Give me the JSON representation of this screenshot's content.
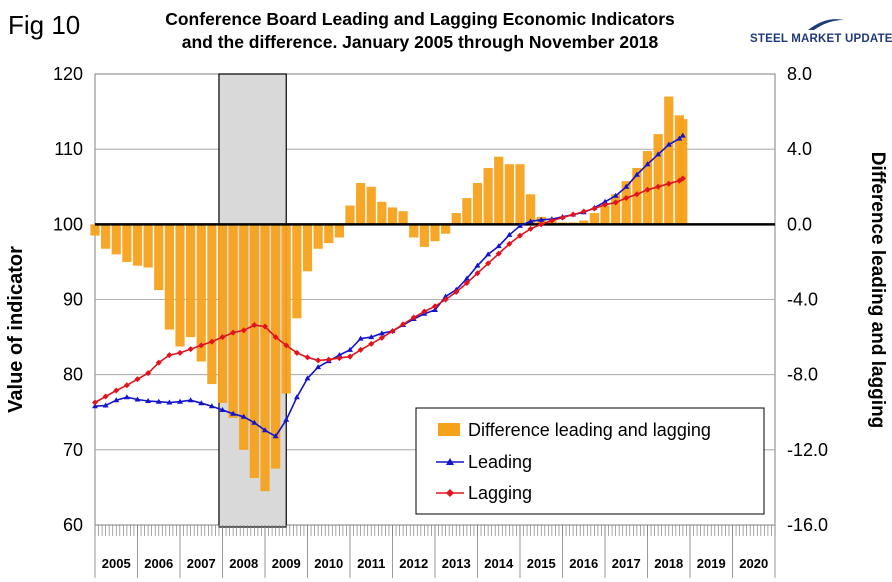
{
  "figure": {
    "label": "Fig 10",
    "title_line1": "Conference Board Leading and Lagging Economic Indicators",
    "title_line2": "and the difference. January 2005 through November 2018",
    "brand": {
      "name": "STEEL MARKET UPDATE",
      "color": "#1f3a7a"
    }
  },
  "chart_data": {
    "type": "line",
    "ylabel": "Value of indicator",
    "y2label": "Difference leading and lagging",
    "ylim": [
      60,
      120
    ],
    "y2lim": [
      -16,
      8
    ],
    "yticks": [
      "120",
      "110",
      "100",
      "90",
      "80",
      "70",
      "60"
    ],
    "y2ticks": [
      "8.0",
      "4.0",
      "0.0",
      "-4.0",
      "-8.0",
      "-12.0",
      "-16.0"
    ],
    "xlim": [
      2005,
      2021
    ],
    "x_labels": [
      "2005",
      "2006",
      "2007",
      "2008",
      "2009",
      "2010",
      "2011",
      "2012",
      "2013",
      "2014",
      "2015",
      "2016",
      "2017",
      "2018",
      "2019",
      "2020"
    ],
    "shaded_period": {
      "start": 2007.917,
      "end": 2009.5
    },
    "colors": {
      "difference": "#f5a21b",
      "leading": "#1414cc",
      "lagging": "#e0141e",
      "shade": "#d9d9d9"
    },
    "legend_position": "bottom-right",
    "series": [
      {
        "name": "Difference leading and lagging",
        "type": "bar",
        "axis": "right",
        "x": [
          2005.0,
          2005.25,
          2005.5,
          2005.75,
          2006.0,
          2006.25,
          2006.5,
          2006.75,
          2007.0,
          2007.25,
          2007.5,
          2007.75,
          2008.0,
          2008.25,
          2008.5,
          2008.75,
          2009.0,
          2009.25,
          2009.5,
          2009.75,
          2010.0,
          2010.25,
          2010.5,
          2010.75,
          2011.0,
          2011.25,
          2011.5,
          2011.75,
          2012.0,
          2012.25,
          2012.5,
          2012.75,
          2013.0,
          2013.25,
          2013.5,
          2013.75,
          2014.0,
          2014.25,
          2014.5,
          2014.75,
          2015.0,
          2015.25,
          2015.5,
          2015.75,
          2016.0,
          2016.25,
          2016.5,
          2016.75,
          2017.0,
          2017.25,
          2017.5,
          2017.75,
          2018.0,
          2018.25,
          2018.5,
          2018.75,
          2018.83
        ],
        "values": [
          -0.6,
          -1.3,
          -1.6,
          -2.0,
          -2.2,
          -2.3,
          -3.5,
          -5.6,
          -6.5,
          -6.0,
          -7.3,
          -8.5,
          -9.5,
          -10.3,
          -12.0,
          -13.5,
          -14.2,
          -13.0,
          -9.0,
          -5.0,
          -2.5,
          -1.3,
          -1.0,
          -0.7,
          1.0,
          2.2,
          2.0,
          1.2,
          0.9,
          0.7,
          -0.7,
          -1.2,
          -0.9,
          -0.5,
          0.6,
          1.4,
          2.2,
          3.0,
          3.6,
          3.2,
          3.2,
          1.6,
          0.4,
          0.2,
          0.1,
          0.1,
          0.2,
          0.6,
          1.0,
          1.6,
          2.3,
          3.0,
          3.9,
          4.8,
          6.8,
          5.8,
          5.6
        ]
      },
      {
        "name": "Leading",
        "type": "line",
        "axis": "left",
        "x": [
          2005.0,
          2005.25,
          2005.5,
          2005.75,
          2006.0,
          2006.25,
          2006.5,
          2006.75,
          2007.0,
          2007.25,
          2007.5,
          2007.75,
          2008.0,
          2008.25,
          2008.5,
          2008.75,
          2009.0,
          2009.25,
          2009.5,
          2009.75,
          2010.0,
          2010.25,
          2010.5,
          2010.75,
          2011.0,
          2011.25,
          2011.5,
          2011.75,
          2012.0,
          2012.25,
          2012.5,
          2012.75,
          2013.0,
          2013.25,
          2013.5,
          2013.75,
          2014.0,
          2014.25,
          2014.5,
          2014.75,
          2015.0,
          2015.25,
          2015.5,
          2015.75,
          2016.0,
          2016.25,
          2016.5,
          2016.75,
          2017.0,
          2017.25,
          2017.5,
          2017.75,
          2018.0,
          2018.25,
          2018.5,
          2018.75,
          2018.83
        ],
        "values": [
          75.8,
          75.9,
          76.6,
          77.0,
          76.7,
          76.5,
          76.4,
          76.3,
          76.4,
          76.6,
          76.2,
          75.8,
          75.3,
          74.8,
          74.4,
          73.6,
          72.6,
          71.8,
          74.0,
          77.0,
          79.5,
          81.0,
          81.8,
          82.6,
          83.3,
          84.8,
          85.0,
          85.5,
          85.8,
          86.6,
          87.4,
          88.1,
          88.6,
          90.4,
          91.3,
          92.8,
          94.5,
          96.0,
          97.1,
          98.6,
          99.8,
          100.4,
          100.6,
          100.7,
          101.0,
          101.3,
          101.6,
          102.2,
          103.0,
          103.8,
          105.0,
          106.6,
          108.0,
          109.3,
          110.6,
          111.4,
          111.8
        ]
      },
      {
        "name": "Lagging",
        "type": "line",
        "axis": "left",
        "x": [
          2005.0,
          2005.25,
          2005.5,
          2005.75,
          2006.0,
          2006.25,
          2006.5,
          2006.75,
          2007.0,
          2007.25,
          2007.5,
          2007.75,
          2008.0,
          2008.25,
          2008.5,
          2008.75,
          2009.0,
          2009.25,
          2009.5,
          2009.75,
          2010.0,
          2010.25,
          2010.5,
          2010.75,
          2011.0,
          2011.25,
          2011.5,
          2011.75,
          2012.0,
          2012.25,
          2012.5,
          2012.75,
          2013.0,
          2013.25,
          2013.5,
          2013.75,
          2014.0,
          2014.25,
          2014.5,
          2014.75,
          2015.0,
          2015.25,
          2015.5,
          2015.75,
          2016.0,
          2016.25,
          2016.5,
          2016.75,
          2017.0,
          2017.25,
          2017.5,
          2017.75,
          2018.0,
          2018.25,
          2018.5,
          2018.75,
          2018.83
        ],
        "values": [
          76.3,
          77.1,
          77.9,
          78.6,
          79.4,
          80.2,
          81.6,
          82.6,
          82.9,
          83.4,
          83.9,
          84.4,
          85.0,
          85.6,
          85.9,
          86.6,
          86.4,
          85.0,
          83.9,
          82.9,
          82.3,
          81.9,
          82.0,
          82.2,
          82.4,
          83.3,
          84.1,
          84.9,
          85.8,
          86.7,
          87.6,
          88.4,
          89.1,
          90.0,
          91.0,
          92.2,
          93.5,
          94.8,
          96.1,
          97.4,
          98.5,
          99.4,
          100.0,
          100.5,
          100.9,
          101.3,
          101.7,
          102.1,
          102.6,
          102.9,
          103.5,
          104.0,
          104.6,
          105.0,
          105.4,
          105.8,
          106.1
        ]
      }
    ]
  }
}
